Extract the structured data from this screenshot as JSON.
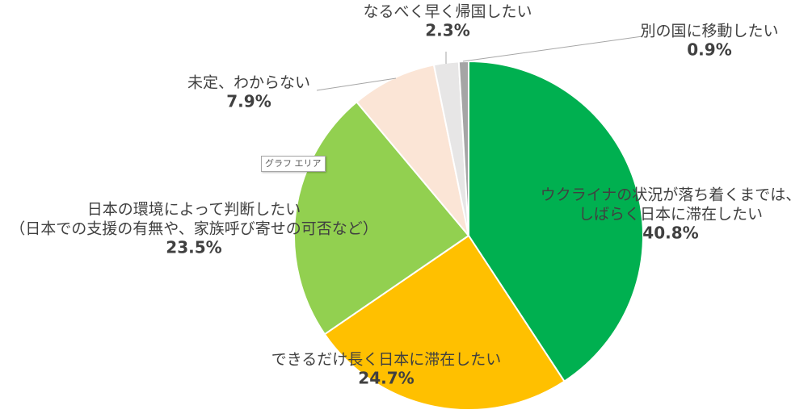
{
  "tooltip": "グラフ エリア",
  "chart_data": {
    "type": "pie",
    "title": "",
    "start_angle_deg": 0,
    "direction": "clockwise",
    "slices": [
      {
        "lines": [
          "ウクライナの状況が落ち着くまでは、",
          "しばらく日本に滞在したい"
        ],
        "value": "40.8%",
        "pct": 40.8,
        "color": "#00b050"
      },
      {
        "lines": [
          "できるだけ長く日本に滞在したい"
        ],
        "value": "24.7%",
        "pct": 24.7,
        "color": "#ffc000"
      },
      {
        "lines": [
          "日本の環境によって判断したい",
          "（日本での支援の有無や、家族呼び寄せの可否など）"
        ],
        "value": "23.5%",
        "pct": 23.5,
        "color": "#92d050"
      },
      {
        "lines": [
          "未定、わからない"
        ],
        "value": "7.9%",
        "pct": 7.9,
        "color": "#fbe5d6"
      },
      {
        "lines": [
          "なるべく早く帰国したい"
        ],
        "value": "2.3%",
        "pct": 2.3,
        "color": "#e7e6e6"
      },
      {
        "lines": [
          "別の国に移動したい"
        ],
        "value": "0.9%",
        "pct": 0.9,
        "color": "#a5a5a5"
      }
    ]
  }
}
